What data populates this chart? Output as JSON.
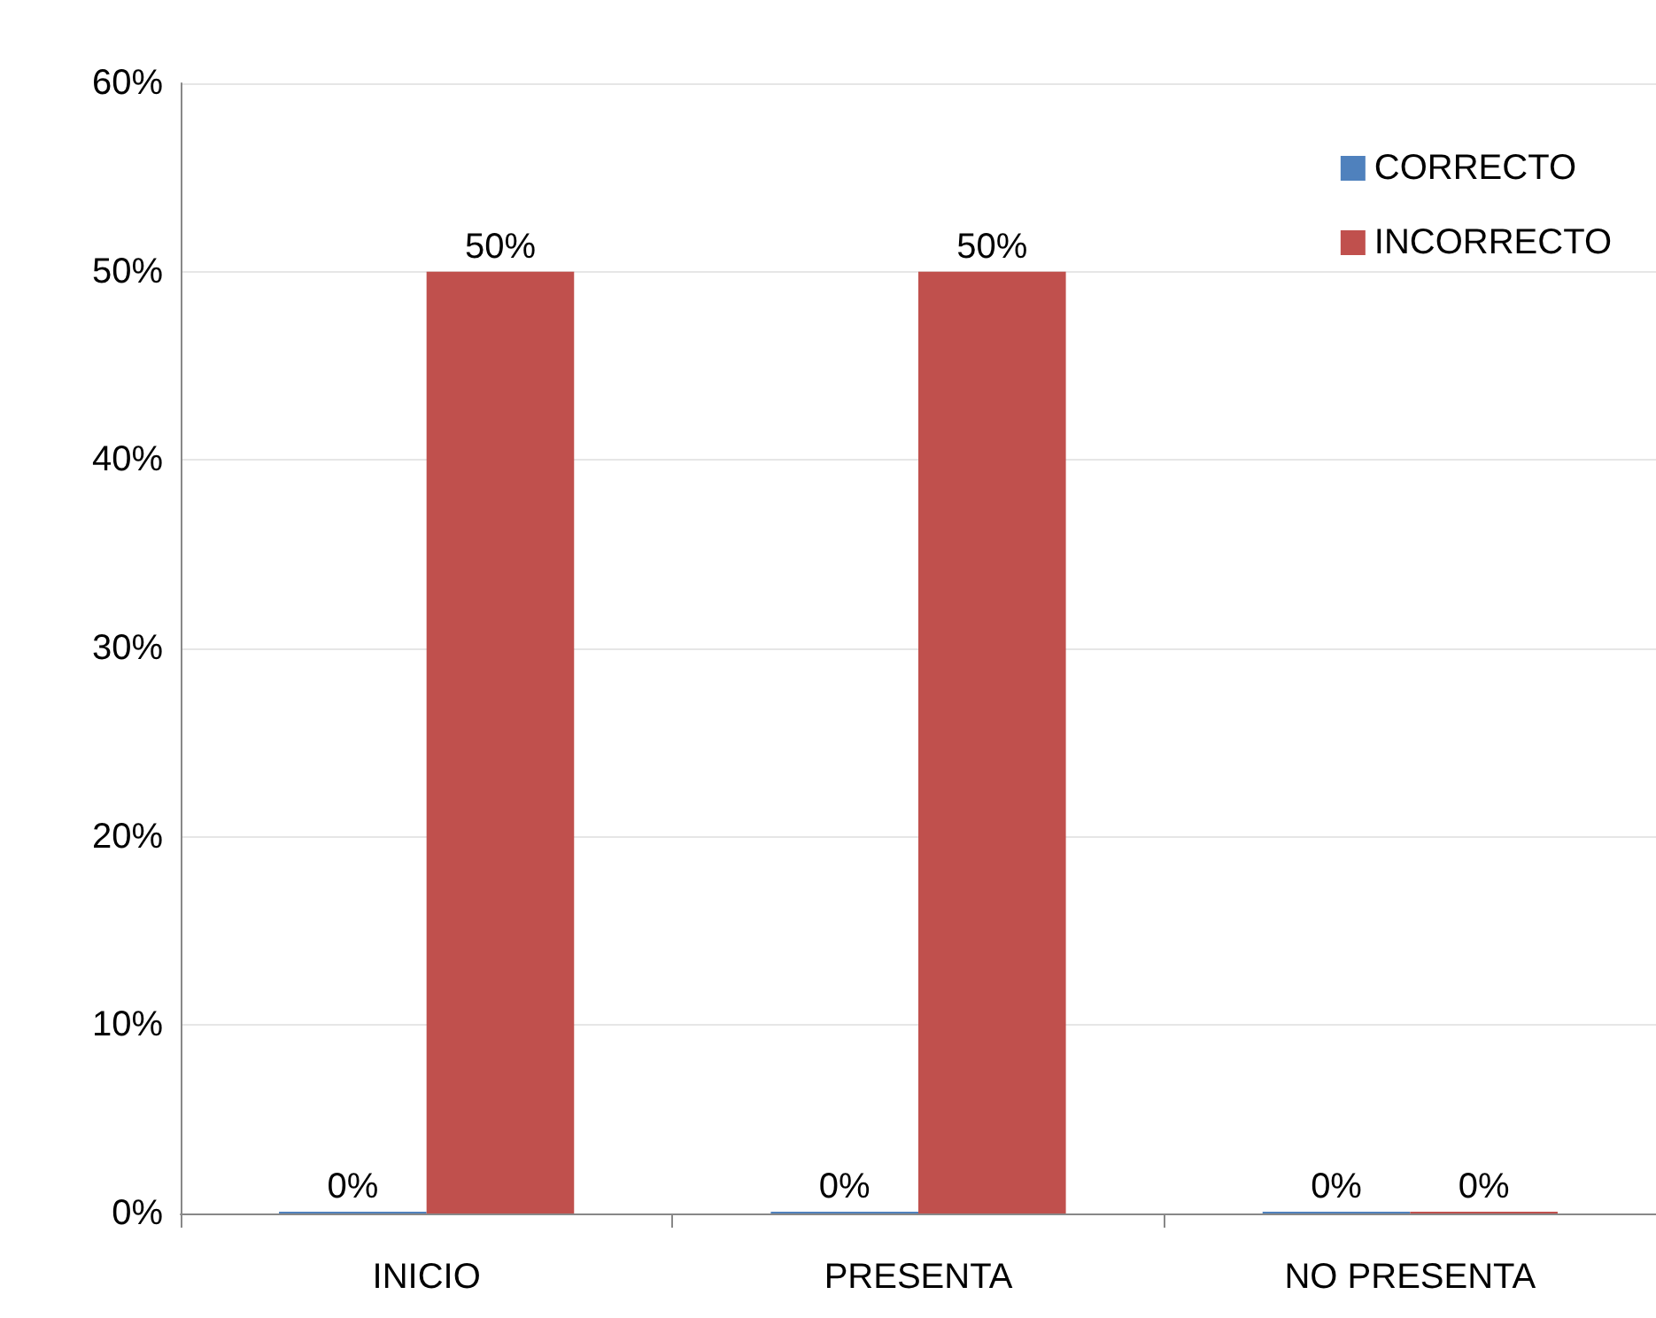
{
  "chart_data": {
    "type": "bar",
    "categories": [
      "INICIO",
      "PRESENTA",
      "NO PRESENTA"
    ],
    "series": [
      {
        "name": "CORRECTO",
        "color": "#4f81bd",
        "values": [
          0,
          0,
          0
        ],
        "value_labels": [
          "0%",
          "0%",
          "0%"
        ]
      },
      {
        "name": "INCORRECTO",
        "color": "#c0504d",
        "values": [
          50,
          50,
          0
        ],
        "value_labels": [
          "50%",
          "50%",
          "0%"
        ]
      }
    ],
    "ylim": [
      0,
      60
    ],
    "yticks": [
      {
        "value": 0,
        "label": "0%"
      },
      {
        "value": 10,
        "label": "10%"
      },
      {
        "value": 20,
        "label": "20%"
      },
      {
        "value": 30,
        "label": "30%"
      },
      {
        "value": 40,
        "label": "40%"
      },
      {
        "value": 50,
        "label": "50%"
      },
      {
        "value": 60,
        "label": "60%"
      }
    ],
    "grid": "y",
    "legend": "top right"
  }
}
